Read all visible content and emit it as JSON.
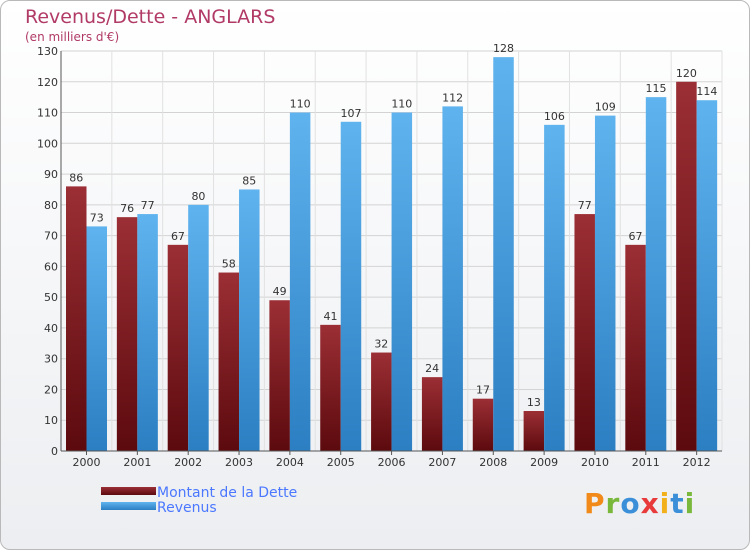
{
  "header": {
    "title": "Revenus/Dette - ANGLARS",
    "subtitle": "(en milliers d'€)"
  },
  "colors": {
    "dette": "#8b2a2f",
    "revenus": "#4ea7e6",
    "title": "#b13a66",
    "legend_text": "#4b78ff"
  },
  "chart_data": {
    "type": "bar",
    "title": "Revenus/Dette - ANGLARS",
    "ylabel": "(en milliers d'€)",
    "xlabel": "",
    "categories": [
      "2000",
      "2001",
      "2002",
      "2003",
      "2004",
      "2005",
      "2006",
      "2007",
      "2008",
      "2009",
      "2010",
      "2011",
      "2012"
    ],
    "series": [
      {
        "name": "Montant de la Dette",
        "values": [
          86,
          76,
          67,
          58,
          49,
          41,
          32,
          24,
          17,
          13,
          77,
          67,
          120
        ]
      },
      {
        "name": "Revenus",
        "values": [
          73,
          77,
          80,
          85,
          110,
          107,
          110,
          112,
          128,
          106,
          109,
          115,
          114
        ]
      }
    ],
    "ylim": [
      0,
      130
    ],
    "yticks": [
      0,
      10,
      20,
      30,
      40,
      50,
      60,
      70,
      80,
      90,
      100,
      110,
      120,
      130
    ],
    "grid": true,
    "legend": "bottom-left"
  },
  "legend": {
    "items": [
      {
        "label": "Montant de la Dette"
      },
      {
        "label": "Revenus"
      }
    ]
  },
  "logo": {
    "text": "Proxiti"
  }
}
